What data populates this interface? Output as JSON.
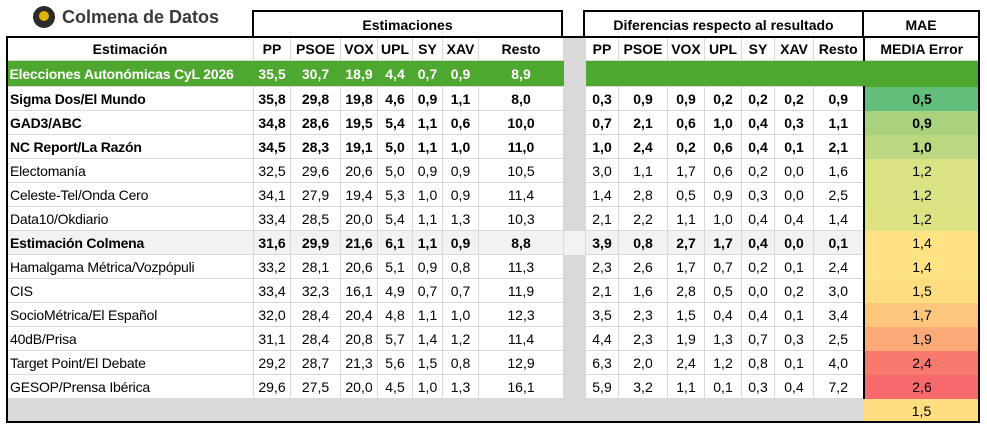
{
  "brand": {
    "name": "Colmena de Datos",
    "logo_icon": "beehive-logo"
  },
  "groups": {
    "estimaciones": "Estimaciones",
    "diferencias": "Diferencias respecto al resultado",
    "mae_line1": "MAE",
    "mae_line2": "MEDIA Error"
  },
  "columns": {
    "name": "Estimación",
    "parties": [
      "PP",
      "PSOE",
      "VOX",
      "UPL",
      "SY",
      "XAV",
      "Resto"
    ]
  },
  "result": {
    "name": "Elecciones Autonómicas CyL 2026",
    "values": [
      "35,5",
      "30,7",
      "18,9",
      "4,4",
      "0,7",
      "0,9",
      "8,9"
    ],
    "color": "#4ea72e"
  },
  "rows": [
    {
      "name": "Sigma Dos/El Mundo",
      "bold": true,
      "est": [
        "35,8",
        "29,8",
        "19,8",
        "4,6",
        "0,9",
        "1,1",
        "8,0"
      ],
      "diff": [
        "0,3",
        "0,9",
        "0,9",
        "0,2",
        "0,2",
        "0,2",
        "0,9"
      ],
      "mae": "0,5",
      "mae_color": "#63be7b"
    },
    {
      "name": "GAD3/ABC",
      "bold": true,
      "est": [
        "34,8",
        "28,6",
        "19,5",
        "5,4",
        "1,1",
        "0,6",
        "10,0"
      ],
      "diff": [
        "0,7",
        "2,1",
        "0,6",
        "1,0",
        "0,4",
        "0,3",
        "1,1"
      ],
      "mae": "0,9",
      "mae_color": "#a9d27f"
    },
    {
      "name": "NC Report/La Razón",
      "bold": true,
      "est": [
        "34,5",
        "28,3",
        "19,1",
        "5,0",
        "1,1",
        "1,0",
        "11,0"
      ],
      "diff": [
        "1,0",
        "2,4",
        "0,2",
        "0,6",
        "0,4",
        "0,1",
        "2,1"
      ],
      "mae": "1,0",
      "mae_color": "#bcd780"
    },
    {
      "name": "Electomanía",
      "est": [
        "32,5",
        "29,6",
        "20,6",
        "5,0",
        "0,9",
        "0,9",
        "10,5"
      ],
      "diff": [
        "3,0",
        "1,1",
        "1,7",
        "0,6",
        "0,2",
        "0,0",
        "1,6"
      ],
      "mae": "1,2",
      "mae_color": "#dae283"
    },
    {
      "name": "Celeste-Tel/Onda Cero",
      "est": [
        "34,1",
        "27,9",
        "19,4",
        "5,3",
        "1,0",
        "0,9",
        "11,4"
      ],
      "diff": [
        "1,4",
        "2,8",
        "0,5",
        "0,9",
        "0,3",
        "0,0",
        "2,5"
      ],
      "mae": "1,2",
      "mae_color": "#dae283"
    },
    {
      "name": "Data10/Okdiario",
      "est": [
        "33,4",
        "28,5",
        "20,0",
        "5,4",
        "1,1",
        "1,3",
        "10,3"
      ],
      "diff": [
        "2,1",
        "2,2",
        "1,1",
        "1,0",
        "0,4",
        "0,4",
        "1,4"
      ],
      "mae": "1,2",
      "mae_color": "#dde283"
    },
    {
      "name": "Estimación Colmena",
      "bold": true,
      "colmena": true,
      "est": [
        "31,6",
        "29,9",
        "21,6",
        "6,1",
        "1,1",
        "0,9",
        "8,8"
      ],
      "diff": [
        "3,9",
        "0,8",
        "2,7",
        "1,7",
        "0,4",
        "0,0",
        "0,1"
      ],
      "mae": "1,4",
      "mae_color": "#fee283"
    },
    {
      "name": "Hamalgama Métrica/Vozpópuli",
      "est": [
        "33,2",
        "28,1",
        "20,6",
        "5,1",
        "0,9",
        "0,8",
        "11,3"
      ],
      "diff": [
        "2,3",
        "2,6",
        "1,7",
        "0,7",
        "0,2",
        "0,1",
        "2,4"
      ],
      "mae": "1,4",
      "mae_color": "#fee283"
    },
    {
      "name": "CIS",
      "est": [
        "33,4",
        "32,3",
        "16,1",
        "4,9",
        "0,7",
        "0,7",
        "11,9"
      ],
      "diff": [
        "2,1",
        "1,6",
        "2,8",
        "0,5",
        "0,0",
        "0,2",
        "3,0"
      ],
      "mae": "1,5",
      "mae_color": "#fedd81"
    },
    {
      "name": "SocioMétrica/El Español",
      "est": [
        "32,0",
        "28,4",
        "20,4",
        "4,8",
        "1,1",
        "1,0",
        "12,3"
      ],
      "diff": [
        "3,5",
        "2,3",
        "1,5",
        "0,4",
        "0,4",
        "0,1",
        "3,4"
      ],
      "mae": "1,7",
      "mae_color": "#fdc67d"
    },
    {
      "name": "40dB/Prisa",
      "est": [
        "31,1",
        "28,4",
        "20,8",
        "5,7",
        "1,4",
        "1,2",
        "11,4"
      ],
      "diff": [
        "4,4",
        "2,3",
        "1,9",
        "1,3",
        "0,7",
        "0,3",
        "2,5"
      ],
      "mae": "1,9",
      "mae_color": "#fbaa77"
    },
    {
      "name": "Target Point/El Debate",
      "est": [
        "29,2",
        "28,7",
        "21,3",
        "5,6",
        "1,5",
        "0,8",
        "12,9"
      ],
      "diff": [
        "6,3",
        "2,0",
        "2,4",
        "1,2",
        "0,8",
        "0,1",
        "4,0"
      ],
      "mae": "2,4",
      "mae_color": "#f8796e"
    },
    {
      "name": "GESOP/Prensa Ibérica",
      "est": [
        "29,6",
        "27,5",
        "20,0",
        "4,5",
        "1,0",
        "1,3",
        "16,1"
      ],
      "diff": [
        "5,9",
        "3,2",
        "1,1",
        "0,1",
        "0,3",
        "0,4",
        "7,2"
      ],
      "mae": "2,6",
      "mae_color": "#f8696b"
    }
  ],
  "average": {
    "mae": "1,5",
    "color": "#fedd81"
  }
}
